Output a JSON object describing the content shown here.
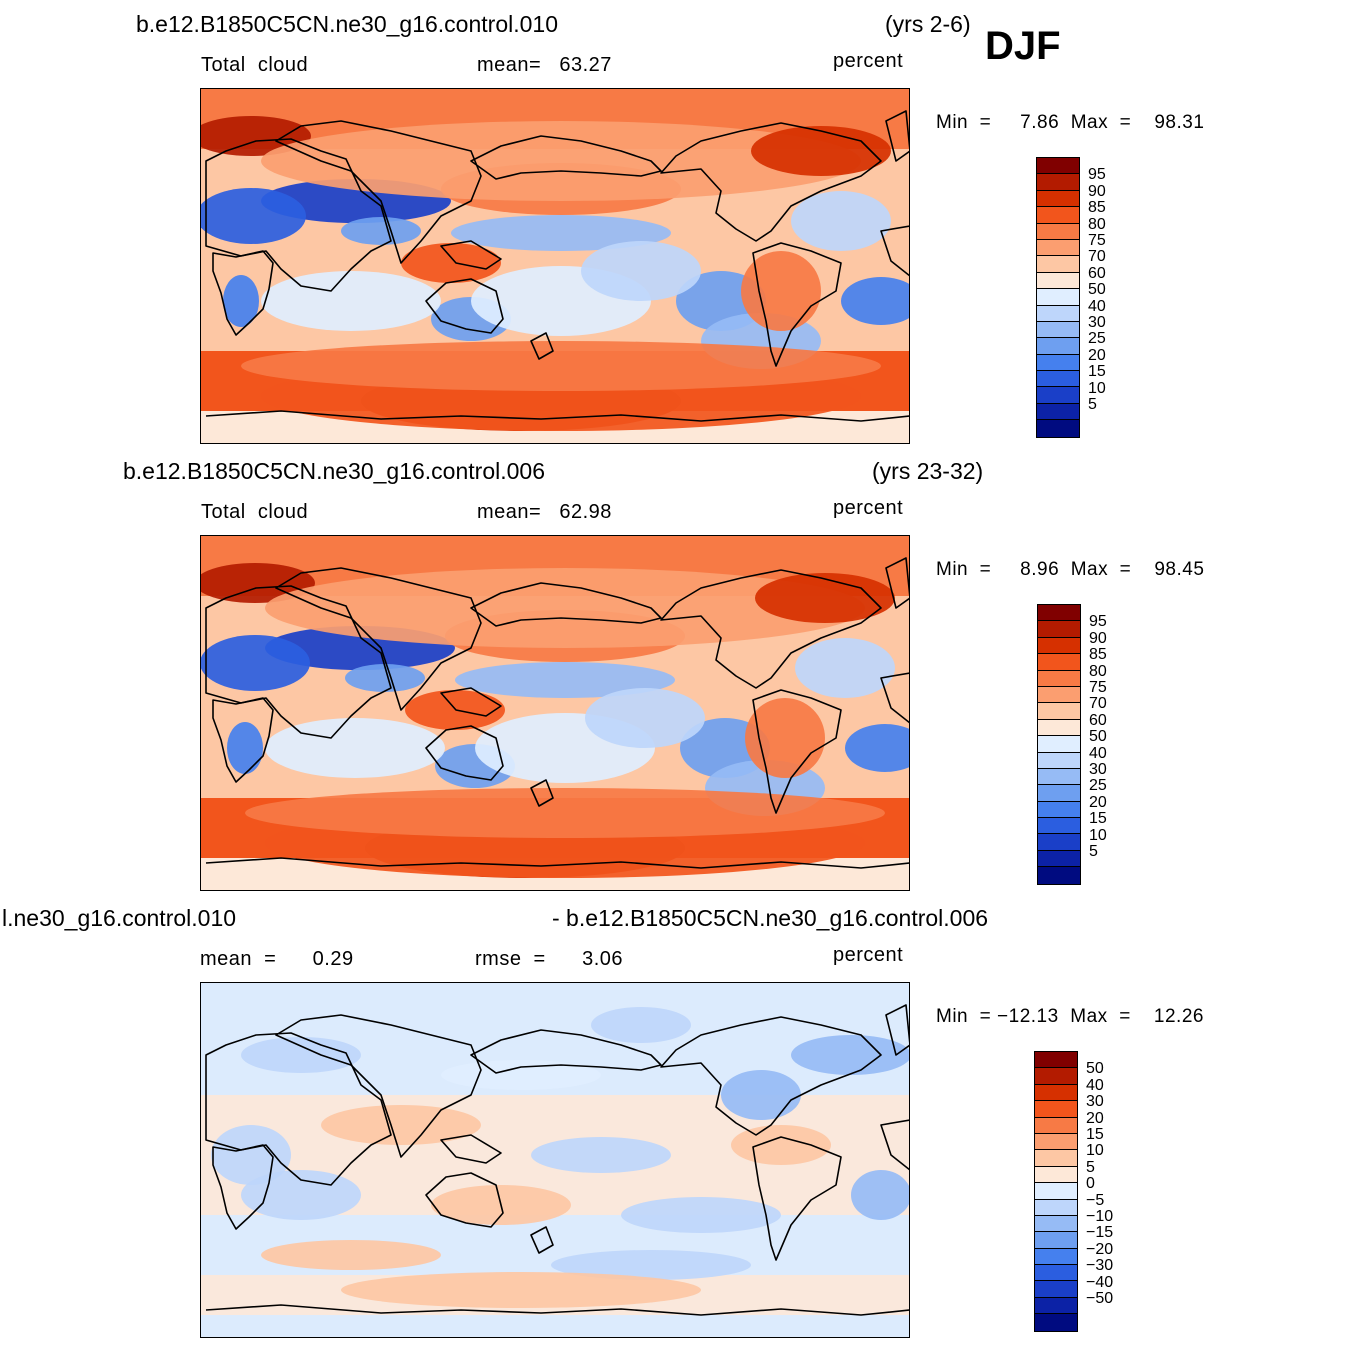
{
  "season": "DJF",
  "panels": [
    {
      "case_title": "b.e12.B1850C5CN.ne30_g16.control.010",
      "years": "(yrs 2-6)",
      "left_label": "Total  cloud",
      "mid_label": "mean=   63.27",
      "units": "percent",
      "minmax": "Min  =     7.86  Max  =    98.31",
      "legend_labels": [
        "95",
        "90",
        "85",
        "80",
        "75",
        "70",
        "60",
        "50",
        "40",
        "30",
        "25",
        "20",
        "15",
        "10",
        "5"
      ],
      "field": "total_cloud"
    },
    {
      "case_title": "b.e12.B1850C5CN.ne30_g16.control.006",
      "years": "(yrs 23-32)",
      "left_label": "Total  cloud",
      "mid_label": "mean=   62.98",
      "units": "percent",
      "minmax": "Min  =     8.96  Max  =    98.45",
      "legend_labels": [
        "95",
        "90",
        "85",
        "80",
        "75",
        "70",
        "60",
        "50",
        "40",
        "30",
        "25",
        "20",
        "15",
        "10",
        "5"
      ],
      "field": "total_cloud"
    },
    {
      "case_title": "l.ne30_g16.control.010",
      "years": "- b.e12.B1850C5CN.ne30_g16.control.006",
      "left_label": "mean  =      0.29",
      "mid_label": "rmse  =      3.06",
      "units": "percent",
      "minmax": "Min  = −12.13  Max  =    12.26",
      "legend_labels": [
        "50",
        "40",
        "30",
        "20",
        "15",
        "10",
        "5",
        "0",
        "−5",
        "−10",
        "−15",
        "−20",
        "−30",
        "−40",
        "−50"
      ],
      "field": "difference"
    }
  ],
  "colors": [
    "#800000",
    "#b31b00",
    "#d63000",
    "#f2551c",
    "#f77a45",
    "#fb9e70",
    "#fdc7a4",
    "#fde8d8",
    "#e0eeff",
    "#bed6fb",
    "#96bbf5",
    "#6e9ff0",
    "#4580ee",
    "#2b5ee0",
    "#1a3fc8",
    "#0c22a6",
    "#000b80"
  ],
  "map_icon": "world-map-pacific-centered"
}
